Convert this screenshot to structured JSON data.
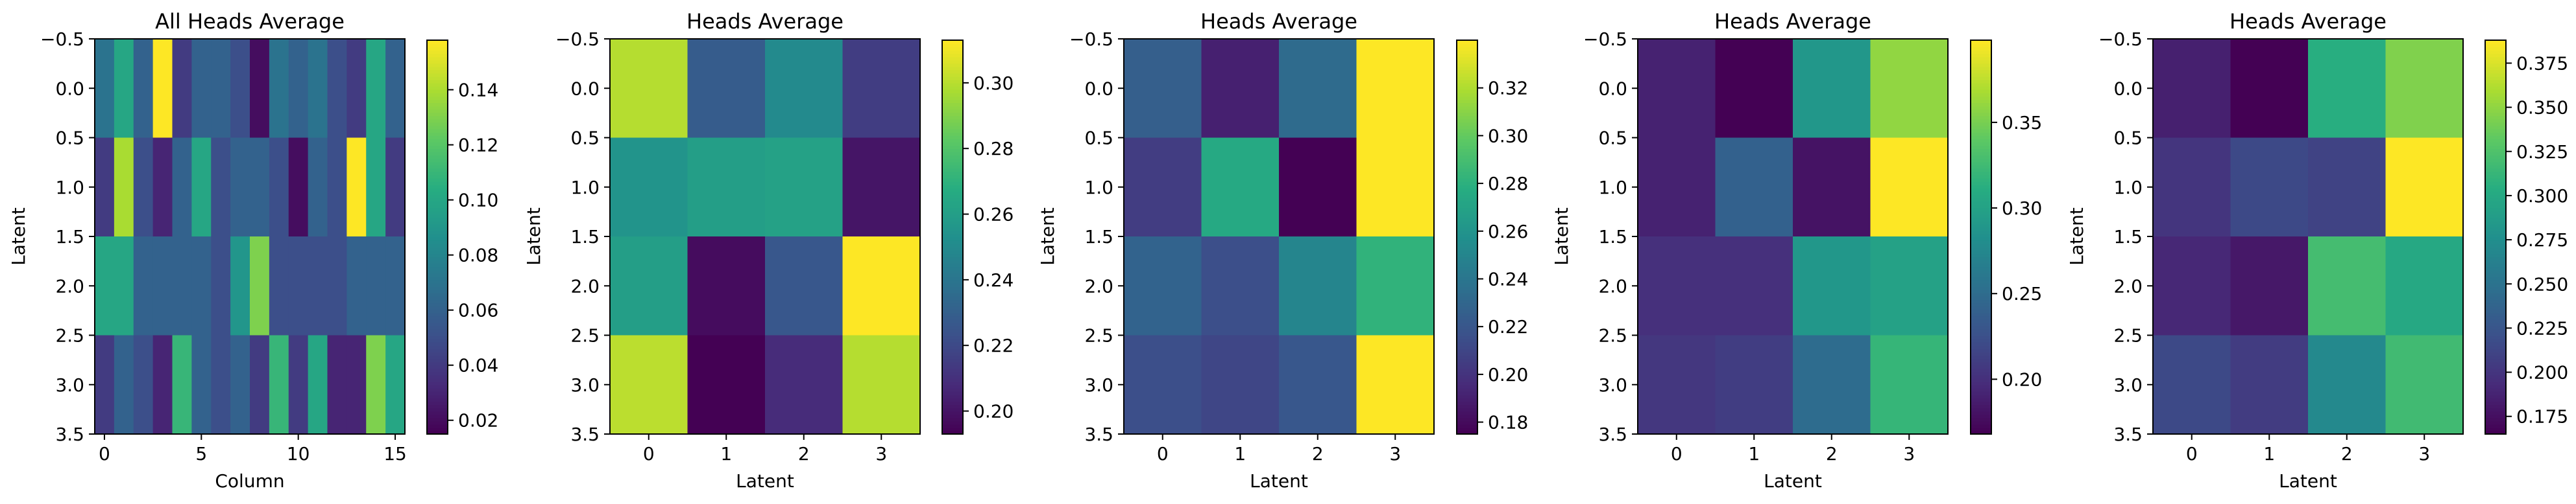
{
  "figure": {
    "background": "#ffffff",
    "colormap": "viridis",
    "colormap_stops": [
      "#440154",
      "#472c7a",
      "#3b518b",
      "#2c718e",
      "#21908d",
      "#27ad81",
      "#5cc863",
      "#aadc32",
      "#fde725"
    ]
  },
  "chart_data": [
    {
      "type": "heatmap",
      "title": "All Heads Average",
      "xlabel": "Column",
      "ylabel": "Latent",
      "x_ticks": [
        "0",
        "5",
        "10",
        "15"
      ],
      "y_ticks": [
        "−0.5",
        "0.0",
        "0.5",
        "1.0",
        "1.5",
        "2.0",
        "2.5",
        "3.0",
        "3.5"
      ],
      "colorbar_ticks": [
        "0.02",
        "0.04",
        "0.06",
        "0.08",
        "0.10",
        "0.12",
        "0.14"
      ],
      "vmin": 0.015,
      "vmax": 0.158,
      "xlim": [
        -0.5,
        15.5
      ],
      "ylim": [
        3.5,
        -0.5
      ],
      "rows": 4,
      "cols": 16,
      "values": [
        [
          0.07,
          0.1,
          0.06,
          0.158,
          0.04,
          0.06,
          0.06,
          0.05,
          0.02,
          0.07,
          0.06,
          0.07,
          0.05,
          0.04,
          0.1,
          0.06
        ],
        [
          0.04,
          0.14,
          0.05,
          0.03,
          0.06,
          0.1,
          0.05,
          0.06,
          0.06,
          0.05,
          0.02,
          0.06,
          0.05,
          0.158,
          0.1,
          0.04
        ],
        [
          0.1,
          0.1,
          0.06,
          0.06,
          0.06,
          0.06,
          0.05,
          0.09,
          0.13,
          0.05,
          0.05,
          0.05,
          0.05,
          0.06,
          0.06,
          0.06
        ],
        [
          0.04,
          0.06,
          0.05,
          0.03,
          0.11,
          0.06,
          0.05,
          0.06,
          0.04,
          0.11,
          0.04,
          0.1,
          0.03,
          0.03,
          0.13,
          0.1
        ]
      ]
    },
    {
      "type": "heatmap",
      "title": "Heads Average",
      "xlabel": "Latent",
      "ylabel": "Latent",
      "x_ticks": [
        "0",
        "1",
        "2",
        "3"
      ],
      "y_ticks": [
        "−0.5",
        "0.0",
        "0.5",
        "1.0",
        "1.5",
        "2.0",
        "2.5",
        "3.0",
        "3.5"
      ],
      "colorbar_ticks": [
        "0.20",
        "0.22",
        "0.24",
        "0.26",
        "0.28",
        "0.30"
      ],
      "vmin": 0.193,
      "vmax": 0.313,
      "xlim": [
        -0.5,
        3.5
      ],
      "ylim": [
        3.5,
        -0.5
      ],
      "rows": 4,
      "cols": 4,
      "values": [
        [
          0.3,
          0.228,
          0.25,
          0.215
        ],
        [
          0.255,
          0.26,
          0.262,
          0.2
        ],
        [
          0.26,
          0.197,
          0.226,
          0.313
        ],
        [
          0.301,
          0.193,
          0.208,
          0.3
        ]
      ]
    },
    {
      "type": "heatmap",
      "title": "Heads Average",
      "xlabel": "Latent",
      "ylabel": "Latent",
      "x_ticks": [
        "0",
        "1",
        "2",
        "3"
      ],
      "y_ticks": [
        "−0.5",
        "0.0",
        "0.5",
        "1.0",
        "1.5",
        "2.0",
        "2.5",
        "3.0",
        "3.5"
      ],
      "colorbar_ticks": [
        "0.18",
        "0.20",
        "0.22",
        "0.24",
        "0.26",
        "0.28",
        "0.30",
        "0.32"
      ],
      "vmin": 0.175,
      "vmax": 0.34,
      "xlim": [
        -0.5,
        3.5
      ],
      "ylim": [
        3.5,
        -0.5
      ],
      "rows": 4,
      "cols": 4,
      "values": [
        [
          0.225,
          0.19,
          0.233,
          0.34
        ],
        [
          0.205,
          0.275,
          0.175,
          0.34
        ],
        [
          0.228,
          0.215,
          0.25,
          0.282
        ],
        [
          0.215,
          0.21,
          0.22,
          0.34
        ]
      ]
    },
    {
      "type": "heatmap",
      "title": "Heads Average",
      "xlabel": "Latent",
      "ylabel": "Latent",
      "x_ticks": [
        "0",
        "1",
        "2",
        "3"
      ],
      "y_ticks": [
        "−0.5",
        "0.0",
        "0.5",
        "1.0",
        "1.5",
        "2.0",
        "2.5",
        "3.0",
        "3.5"
      ],
      "colorbar_ticks": [
        "0.20",
        "0.25",
        "0.30",
        "0.35"
      ],
      "vmin": 0.168,
      "vmax": 0.398,
      "xlim": [
        -0.5,
        3.5
      ],
      "ylim": [
        3.5,
        -0.5
      ],
      "rows": 4,
      "cols": 4,
      "values": [
        [
          0.19,
          0.168,
          0.29,
          0.36
        ],
        [
          0.19,
          0.24,
          0.18,
          0.398
        ],
        [
          0.2,
          0.2,
          0.29,
          0.3
        ],
        [
          0.205,
          0.21,
          0.25,
          0.32
        ]
      ]
    },
    {
      "type": "heatmap",
      "title": "Heads Average",
      "xlabel": "Latent",
      "ylabel": "Latent",
      "x_ticks": [
        "0",
        "1",
        "2",
        "3"
      ],
      "y_ticks": [
        "−0.5",
        "0.0",
        "0.5",
        "1.0",
        "1.5",
        "2.0",
        "2.5",
        "3.0",
        "3.5"
      ],
      "colorbar_ticks": [
        "0.175",
        "0.200",
        "0.225",
        "0.250",
        "0.275",
        "0.300",
        "0.325",
        "0.350",
        "0.375"
      ],
      "vmin": 0.165,
      "vmax": 0.388,
      "xlim": [
        -0.5,
        3.5
      ],
      "ylim": [
        3.5,
        -0.5
      ],
      "rows": 4,
      "cols": 4,
      "values": [
        [
          0.185,
          0.165,
          0.305,
          0.345
        ],
        [
          0.2,
          0.215,
          0.21,
          0.388
        ],
        [
          0.19,
          0.18,
          0.32,
          0.3
        ],
        [
          0.215,
          0.205,
          0.27,
          0.318
        ]
      ]
    }
  ]
}
